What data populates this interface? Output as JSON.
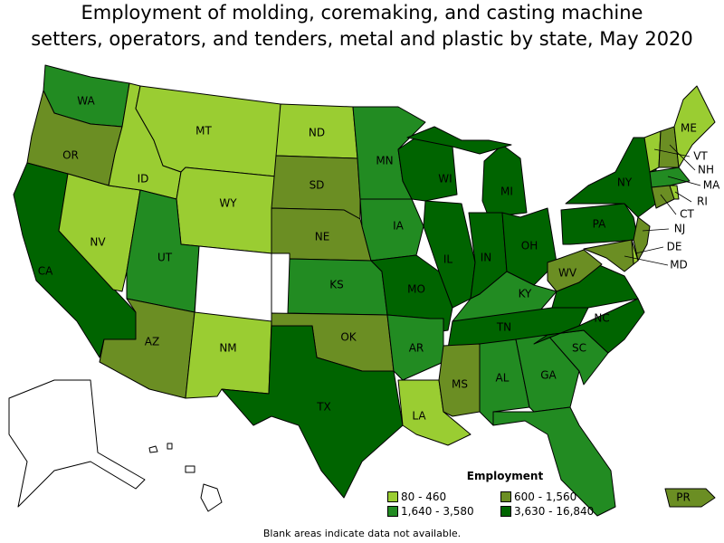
{
  "title": "Employment of molding, coremaking, and casting machine\nsetters, operators, and tenders, metal and plastic by state, May 2020",
  "legend": {
    "title": "Employment",
    "bins": [
      {
        "label": "80 - 460",
        "color": "#9acd32"
      },
      {
        "label": "600 - 1,560",
        "color": "#6b8e23"
      },
      {
        "label": "1,640 - 3,580",
        "color": "#228b22"
      },
      {
        "label": "3,630 - 16,840",
        "color": "#006400"
      }
    ]
  },
  "blank_color": "#ffffff",
  "note": "Blank areas indicate data not available.",
  "states": {
    "WA": 2,
    "OR": 1,
    "CA": 3,
    "NV": 0,
    "ID": 0,
    "MT": 0,
    "WY": 0,
    "UT": 2,
    "CO": null,
    "AZ": 1,
    "NM": 0,
    "ND": 0,
    "SD": 1,
    "NE": 1,
    "KS": 2,
    "OK": 1,
    "TX": 3,
    "MN": 2,
    "IA": 2,
    "MO": 3,
    "AR": 2,
    "LA": 0,
    "WI": 3,
    "IL": 3,
    "MI": 3,
    "IN": 3,
    "OH": 3,
    "KY": 2,
    "TN": 3,
    "MS": 1,
    "AL": 2,
    "GA": 2,
    "FL": 2,
    "SC": 2,
    "NC": 3,
    "VA": 3,
    "WV": 1,
    "PA": 3,
    "NY": 3,
    "NJ": 1,
    "DE": 0,
    "MD": 1,
    "CT": 1,
    "RI": 0,
    "MA": 2,
    "VT": 0,
    "NH": 1,
    "ME": 0,
    "PR": 1,
    "AK": null,
    "HI": null
  }
}
